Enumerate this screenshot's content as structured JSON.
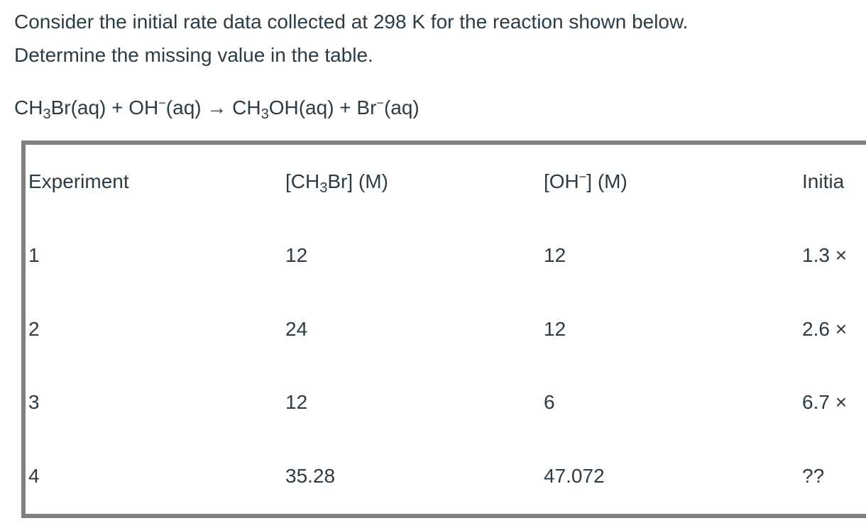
{
  "question": {
    "lines": [
      "Consider the initial rate data collected at 298 K for the reaction shown below.",
      "Determine the missing value in the table."
    ]
  },
  "equation": [
    "CH",
    "3",
    "Br(aq) + OH",
    "−",
    "(aq) → CH",
    "3",
    "OH(aq) + Br",
    "−",
    "(aq)"
  ],
  "table": {
    "header": [
      "Experiment",
      [
        "[CH",
        "3",
        "Br] (M)"
      ],
      [
        "[OH",
        "−",
        "] (M)"
      ],
      "Initia"
    ],
    "rows": [
      [
        "1",
        "12",
        "12",
        "1.3 ×"
      ],
      [
        "2",
        "24",
        "12",
        "2.6 ×"
      ],
      [
        "3",
        "12",
        "6",
        "6.7 ×"
      ],
      [
        "4",
        "35.28",
        "47.072",
        "??"
      ]
    ]
  }
}
